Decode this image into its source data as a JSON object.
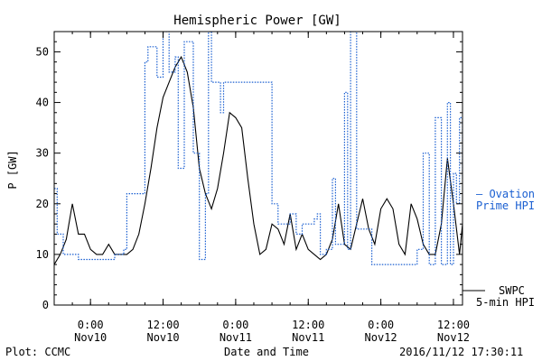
{
  "chart_data": {
    "type": "line",
    "title": "Hemispheric Power [GW]",
    "ylabel": "P [GW]",
    "xlabel": "Date and Time",
    "footer_left": "Plot: CCMC",
    "footer_right": "2016/11/12 17:30:11",
    "ylim": [
      0,
      54
    ],
    "xlim": [
      "2016-11-09 18:00",
      "2016-11-12 13:30"
    ],
    "yticks": [
      0,
      10,
      20,
      30,
      40,
      50
    ],
    "xticks": [
      {
        "x": "2016-11-10 00:00",
        "time": "0:00",
        "date": "Nov10"
      },
      {
        "x": "2016-11-10 12:00",
        "time": "12:00",
        "date": "Nov10"
      },
      {
        "x": "2016-11-11 00:00",
        "time": "0:00",
        "date": "Nov11"
      },
      {
        "x": "2016-11-11 12:00",
        "time": "12:00",
        "date": "Nov11"
      },
      {
        "x": "2016-11-12 00:00",
        "time": "0:00",
        "date": "Nov12"
      },
      {
        "x": "2016-11-12 12:00",
        "time": "12:00",
        "date": "Nov12"
      }
    ],
    "minor_tick_hours": 3,
    "grid": false,
    "series": [
      {
        "name": "SWPC 5-min HPI",
        "legend_line1": "SWPC",
        "legend_line2": "5-min HPI",
        "color": "#000000",
        "style": "solid",
        "points": [
          [
            "2016-11-09 18:00",
            8
          ],
          [
            "2016-11-09 19:00",
            10
          ],
          [
            "2016-11-09 20:00",
            13
          ],
          [
            "2016-11-09 21:00",
            20
          ],
          [
            "2016-11-09 22:00",
            14
          ],
          [
            "2016-11-09 23:00",
            14
          ],
          [
            "2016-11-10 00:00",
            11
          ],
          [
            "2016-11-10 01:00",
            10
          ],
          [
            "2016-11-10 02:00",
            10
          ],
          [
            "2016-11-10 03:00",
            12
          ],
          [
            "2016-11-10 04:00",
            10
          ],
          [
            "2016-11-10 05:00",
            10
          ],
          [
            "2016-11-10 06:00",
            10
          ],
          [
            "2016-11-10 07:00",
            11
          ],
          [
            "2016-11-10 08:00",
            14
          ],
          [
            "2016-11-10 09:00",
            20
          ],
          [
            "2016-11-10 10:00",
            27
          ],
          [
            "2016-11-10 11:00",
            35
          ],
          [
            "2016-11-10 12:00",
            41
          ],
          [
            "2016-11-10 13:00",
            44
          ],
          [
            "2016-11-10 14:00",
            47
          ],
          [
            "2016-11-10 15:00",
            49
          ],
          [
            "2016-11-10 16:00",
            46
          ],
          [
            "2016-11-10 17:00",
            39
          ],
          [
            "2016-11-10 18:00",
            27
          ],
          [
            "2016-11-10 19:00",
            22
          ],
          [
            "2016-11-10 20:00",
            19
          ],
          [
            "2016-11-10 21:00",
            23
          ],
          [
            "2016-11-10 22:00",
            30
          ],
          [
            "2016-11-10 23:00",
            38
          ],
          [
            "2016-11-11 00:00",
            37
          ],
          [
            "2016-11-11 01:00",
            35
          ],
          [
            "2016-11-11 02:00",
            25
          ],
          [
            "2016-11-11 03:00",
            16
          ],
          [
            "2016-11-11 04:00",
            10
          ],
          [
            "2016-11-11 05:00",
            11
          ],
          [
            "2016-11-11 06:00",
            16
          ],
          [
            "2016-11-11 07:00",
            15
          ],
          [
            "2016-11-11 08:00",
            12
          ],
          [
            "2016-11-11 09:00",
            18
          ],
          [
            "2016-11-11 10:00",
            11
          ],
          [
            "2016-11-11 11:00",
            14
          ],
          [
            "2016-11-11 12:00",
            11
          ],
          [
            "2016-11-11 13:00",
            10
          ],
          [
            "2016-11-11 14:00",
            9
          ],
          [
            "2016-11-11 15:00",
            10
          ],
          [
            "2016-11-11 16:00",
            13
          ],
          [
            "2016-11-11 17:00",
            20
          ],
          [
            "2016-11-11 18:00",
            12
          ],
          [
            "2016-11-11 19:00",
            11
          ],
          [
            "2016-11-11 20:00",
            16
          ],
          [
            "2016-11-11 21:00",
            21
          ],
          [
            "2016-11-11 22:00",
            15
          ],
          [
            "2016-11-11 23:00",
            12
          ],
          [
            "2016-11-12 00:00",
            19
          ],
          [
            "2016-11-12 01:00",
            21
          ],
          [
            "2016-11-12 02:00",
            19
          ],
          [
            "2016-11-12 03:00",
            12
          ],
          [
            "2016-11-12 04:00",
            10
          ],
          [
            "2016-11-12 05:00",
            20
          ],
          [
            "2016-11-12 06:00",
            17
          ],
          [
            "2016-11-12 07:00",
            12
          ],
          [
            "2016-11-12 08:00",
            10
          ],
          [
            "2016-11-12 09:00",
            10
          ],
          [
            "2016-11-12 10:00",
            16
          ],
          [
            "2016-11-12 11:00",
            29
          ],
          [
            "2016-11-12 12:00",
            20
          ],
          [
            "2016-11-12 13:00",
            10
          ],
          [
            "2016-11-12 13:30",
            16
          ]
        ]
      },
      {
        "name": "Ovation Prime HPI",
        "legend_line1": "— Ovation",
        "legend_line2": "Prime HPI",
        "color": "#1a5fd1",
        "style": "dotted",
        "points": [
          [
            "2016-11-09 18:00",
            23
          ],
          [
            "2016-11-09 18:30",
            14
          ],
          [
            "2016-11-09 19:00",
            14
          ],
          [
            "2016-11-09 19:30",
            10
          ],
          [
            "2016-11-09 21:00",
            10
          ],
          [
            "2016-11-09 22:00",
            9
          ],
          [
            "2016-11-10 03:00",
            9
          ],
          [
            "2016-11-10 04:00",
            10
          ],
          [
            "2016-11-10 05:30",
            11
          ],
          [
            "2016-11-10 06:00",
            22
          ],
          [
            "2016-11-10 09:00",
            48
          ],
          [
            "2016-11-10 09:30",
            51
          ],
          [
            "2016-11-10 10:30",
            51
          ],
          [
            "2016-11-10 11:00",
            45
          ],
          [
            "2016-11-10 12:00",
            54
          ],
          [
            "2016-11-10 13:00",
            46
          ],
          [
            "2016-11-10 14:00",
            49
          ],
          [
            "2016-11-10 14:30",
            27
          ],
          [
            "2016-11-10 15:30",
            52
          ],
          [
            "2016-11-10 17:00",
            30
          ],
          [
            "2016-11-10 18:00",
            9
          ],
          [
            "2016-11-10 19:00",
            22
          ],
          [
            "2016-11-10 19:30",
            54
          ],
          [
            "2016-11-10 20:00",
            44
          ],
          [
            "2016-11-10 21:00",
            44
          ],
          [
            "2016-11-10 21:30",
            38
          ],
          [
            "2016-11-10 22:00",
            44
          ],
          [
            "2016-11-11 01:00",
            44
          ],
          [
            "2016-11-11 06:00",
            20
          ],
          [
            "2016-11-11 07:00",
            16
          ],
          [
            "2016-11-11 08:00",
            16
          ],
          [
            "2016-11-11 09:00",
            18
          ],
          [
            "2016-11-11 10:00",
            14
          ],
          [
            "2016-11-11 11:00",
            16
          ],
          [
            "2016-11-11 12:00",
            16
          ],
          [
            "2016-11-11 13:00",
            17
          ],
          [
            "2016-11-11 13:30",
            18
          ],
          [
            "2016-11-11 14:00",
            10
          ],
          [
            "2016-11-11 15:00",
            11
          ],
          [
            "2016-11-11 16:00",
            25
          ],
          [
            "2016-11-11 16:30",
            12
          ],
          [
            "2016-11-11 17:00",
            12
          ],
          [
            "2016-11-11 18:00",
            42
          ],
          [
            "2016-11-11 18:30",
            11
          ],
          [
            "2016-11-11 19:00",
            54
          ],
          [
            "2016-11-11 20:00",
            15
          ],
          [
            "2016-11-11 21:00",
            15
          ],
          [
            "2016-11-11 22:00",
            15
          ],
          [
            "2016-11-11 22:30",
            8
          ],
          [
            "2016-11-12 04:00",
            8
          ],
          [
            "2016-11-12 06:00",
            11
          ],
          [
            "2016-11-12 07:00",
            30
          ],
          [
            "2016-11-12 08:00",
            8
          ],
          [
            "2016-11-12 09:00",
            37
          ],
          [
            "2016-11-12 10:00",
            8
          ],
          [
            "2016-11-12 11:00",
            40
          ],
          [
            "2016-11-12 11:30",
            8
          ],
          [
            "2016-11-12 12:00",
            26
          ],
          [
            "2016-11-12 12:30",
            20
          ],
          [
            "2016-11-12 13:00",
            37
          ],
          [
            "2016-11-12 13:30",
            25
          ]
        ]
      }
    ]
  }
}
